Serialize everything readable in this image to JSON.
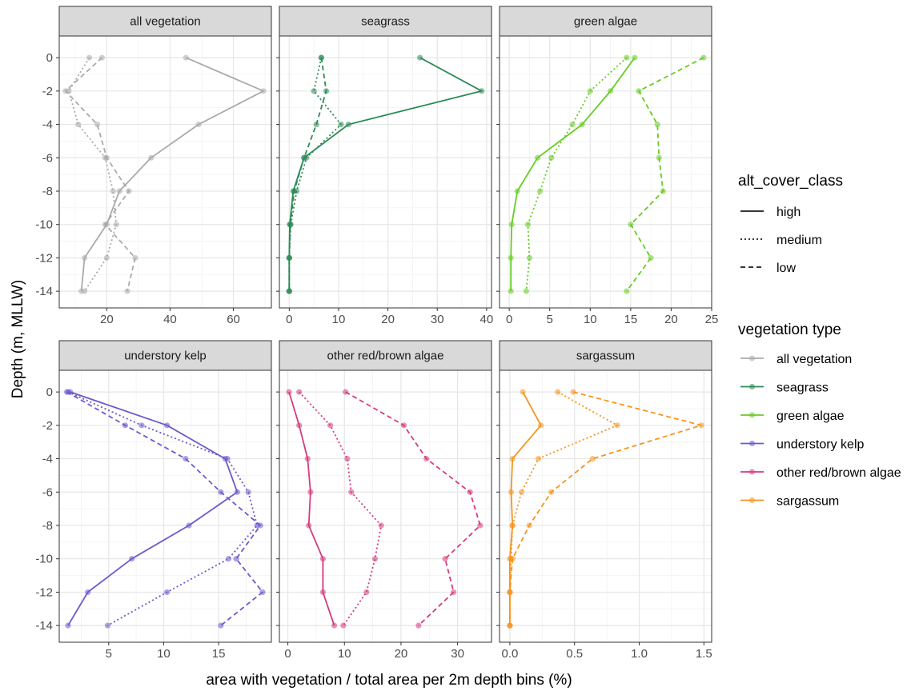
{
  "xlabel": "area with vegetation / total area per 2m depth bins (%)",
  "ylabel": "Depth (m, MLLW)",
  "legend_linetype": {
    "title": "alt_cover_class",
    "entries": [
      {
        "label": "high",
        "dash": "solid"
      },
      {
        "label": "medium",
        "dash": "dotted"
      },
      {
        "label": "low",
        "dash": "dashed"
      }
    ]
  },
  "legend_color": {
    "title": "vegetation type",
    "entries": [
      {
        "label": "all vegetation",
        "color": "#AAAAAA"
      },
      {
        "label": "seagrass",
        "color": "#2E8B57"
      },
      {
        "label": "green algae",
        "color": "#66CC22"
      },
      {
        "label": "understory kelp",
        "color": "#6A5ACD"
      },
      {
        "label": "other red/brown algae",
        "color": "#D63A7F"
      },
      {
        "label": "sargassum",
        "color": "#F7941D"
      }
    ]
  },
  "chart_data": [
    {
      "type": "line",
      "title": "all vegetation",
      "color": "#AAAAAA",
      "xlim": [
        5,
        72
      ],
      "xticks": [
        20,
        40,
        60
      ],
      "ylim": [
        -15,
        1.3
      ],
      "yticks": [
        0,
        -2,
        -4,
        -6,
        -8,
        -10,
        -12,
        -14
      ],
      "show_y_ticklabels": true,
      "series": [
        {
          "name": "high",
          "dash": "solid",
          "x": [
            45,
            69.5,
            49,
            34,
            24,
            20,
            13,
            12
          ],
          "y": [
            0,
            -2,
            -4,
            -6,
            -8,
            -10,
            -12,
            -14
          ]
        },
        {
          "name": "medium",
          "dash": "dotted",
          "x": [
            14.5,
            8,
            11,
            19.5,
            22,
            23,
            20,
            13
          ],
          "y": [
            0,
            -2,
            -4,
            -6,
            -8,
            -10,
            -12,
            -14
          ]
        },
        {
          "name": "low",
          "dash": "dashed",
          "x": [
            18.5,
            7,
            17,
            20,
            27,
            19.5,
            29,
            26.5
          ],
          "y": [
            0,
            -2,
            -4,
            -6,
            -8,
            -10,
            -12,
            -14
          ]
        }
      ]
    },
    {
      "type": "line",
      "title": "seagrass",
      "color": "#2E8B57",
      "xlim": [
        -2,
        41
      ],
      "xticks": [
        0,
        10,
        20,
        30,
        40
      ],
      "ylim": [
        -15,
        1.3
      ],
      "yticks": [
        0,
        -2,
        -4,
        -6,
        -8,
        -10,
        -12,
        -14
      ],
      "show_y_ticklabels": false,
      "series": [
        {
          "name": "high",
          "dash": "solid",
          "x": [
            26.5,
            39,
            12,
            3,
            0.8,
            0.1,
            0,
            0
          ],
          "y": [
            0,
            -2,
            -4,
            -6,
            -8,
            -10,
            -12,
            -14
          ]
        },
        {
          "name": "medium",
          "dash": "dotted",
          "x": [
            6.5,
            5,
            10.5,
            3.5,
            1.5,
            0.3,
            0,
            0
          ],
          "y": [
            0,
            -2,
            -4,
            -6,
            -8,
            -10,
            -12,
            -14
          ]
        },
        {
          "name": "low",
          "dash": "dashed",
          "x": [
            6.5,
            7.5,
            5.5,
            3,
            1,
            0.2,
            0,
            0
          ],
          "y": [
            0,
            -2,
            -4,
            -6,
            -8,
            -10,
            -12,
            -14
          ]
        }
      ]
    },
    {
      "type": "line",
      "title": "green algae",
      "color": "#66CC22",
      "xlim": [
        -1.2,
        25
      ],
      "xticks": [
        0,
        5,
        10,
        15,
        20,
        25
      ],
      "ylim": [
        -15,
        1.3
      ],
      "yticks": [
        0,
        -2,
        -4,
        -6,
        -8,
        -10,
        -12,
        -14
      ],
      "show_y_ticklabels": false,
      "series": [
        {
          "name": "high",
          "dash": "solid",
          "x": [
            15.5,
            12.5,
            9,
            3.5,
            1,
            0.3,
            0.2,
            0.2
          ],
          "y": [
            0,
            -2,
            -4,
            -6,
            -8,
            -10,
            -12,
            -14
          ]
        },
        {
          "name": "medium",
          "dash": "dotted",
          "x": [
            14.5,
            10,
            7.8,
            5.2,
            3.8,
            2.3,
            2.5,
            2.1
          ],
          "y": [
            0,
            -2,
            -4,
            -6,
            -8,
            -10,
            -12,
            -14
          ]
        },
        {
          "name": "low",
          "dash": "dashed",
          "x": [
            24,
            16,
            18.3,
            18.5,
            19,
            15,
            17.5,
            14.5
          ],
          "y": [
            0,
            -2,
            -4,
            -6,
            -8,
            -10,
            -12,
            -14
          ]
        }
      ]
    },
    {
      "type": "line",
      "title": "understory kelp",
      "color": "#6A5ACD",
      "xlim": [
        0.5,
        19.8
      ],
      "xticks": [
        5,
        10,
        15,
        20
      ],
      "ylim": [
        -15,
        1.3
      ],
      "yticks": [
        0,
        -2,
        -4,
        -6,
        -8,
        -10,
        -12,
        -14
      ],
      "show_y_ticklabels": true,
      "series": [
        {
          "name": "high",
          "dash": "solid",
          "x": [
            1.5,
            10.3,
            15.6,
            16.7,
            12.3,
            7.1,
            3.1,
            1.3
          ],
          "y": [
            0,
            -2,
            -4,
            -6,
            -8,
            -10,
            -12,
            -14
          ]
        },
        {
          "name": "medium",
          "dash": "dotted",
          "x": [
            1.3,
            8,
            15.8,
            17.7,
            18.5,
            15.9,
            10.3,
            4.9
          ],
          "y": [
            0,
            -2,
            -4,
            -6,
            -8,
            -10,
            -12,
            -14
          ]
        },
        {
          "name": "low",
          "dash": "dashed",
          "x": [
            1.2,
            6.5,
            12,
            15.2,
            18.8,
            16.6,
            19,
            15.2
          ],
          "y": [
            0,
            -2,
            -4,
            -6,
            -8,
            -10,
            -12,
            -14
          ]
        }
      ]
    },
    {
      "type": "line",
      "title": "other red/brown algae",
      "color": "#D63A7F",
      "xlim": [
        -1.5,
        36
      ],
      "xticks": [
        0,
        10,
        20,
        30
      ],
      "ylim": [
        -15,
        1.3
      ],
      "yticks": [
        0,
        -2,
        -4,
        -6,
        -8,
        -10,
        -12,
        -14
      ],
      "show_y_ticklabels": false,
      "series": [
        {
          "name": "high",
          "dash": "solid",
          "x": [
            0.2,
            2,
            3.5,
            4,
            3.7,
            6.2,
            6.2,
            8.2
          ],
          "y": [
            0,
            -2,
            -4,
            -6,
            -8,
            -10,
            -12,
            -14
          ]
        },
        {
          "name": "medium",
          "dash": "dotted",
          "x": [
            2,
            7.5,
            10.5,
            11.2,
            16.5,
            15.4,
            13.9,
            9.8
          ],
          "y": [
            0,
            -2,
            -4,
            -6,
            -8,
            -10,
            -12,
            -14
          ]
        },
        {
          "name": "low",
          "dash": "dashed",
          "x": [
            10.2,
            20.5,
            24.5,
            32.2,
            34,
            27.8,
            29.3,
            23.1
          ],
          "y": [
            0,
            -2,
            -4,
            -6,
            -8,
            -10,
            -12,
            -14
          ]
        }
      ]
    },
    {
      "type": "line",
      "title": "sargassum",
      "color": "#F7941D",
      "xlim": [
        -0.08,
        1.56
      ],
      "xticks": [
        0,
        0.5,
        1,
        1.5
      ],
      "xtick_labels": [
        "0.0",
        "0.5",
        "1.0",
        "1.5"
      ],
      "ylim": [
        -15,
        1.3
      ],
      "yticks": [
        0,
        -2,
        -4,
        -6,
        -8,
        -10,
        -12,
        -14
      ],
      "show_y_ticklabels": false,
      "series": [
        {
          "name": "high",
          "dash": "solid",
          "x": [
            0.1,
            0.24,
            0.02,
            0.01,
            0.02,
            0,
            0,
            0
          ],
          "y": [
            0,
            -2,
            -4,
            -6,
            -8,
            -10,
            -12,
            -14
          ]
        },
        {
          "name": "medium",
          "dash": "dotted",
          "x": [
            0.37,
            0.83,
            0.22,
            0.09,
            0.02,
            0.01,
            0,
            0
          ],
          "y": [
            0,
            -2,
            -4,
            -6,
            -8,
            -10,
            -12,
            -14
          ]
        },
        {
          "name": "low",
          "dash": "dashed",
          "x": [
            0.49,
            1.48,
            0.64,
            0.32,
            0.15,
            0.02,
            0,
            0
          ],
          "y": [
            0,
            -2,
            -4,
            -6,
            -8,
            -10,
            -12,
            -14
          ]
        }
      ]
    }
  ]
}
